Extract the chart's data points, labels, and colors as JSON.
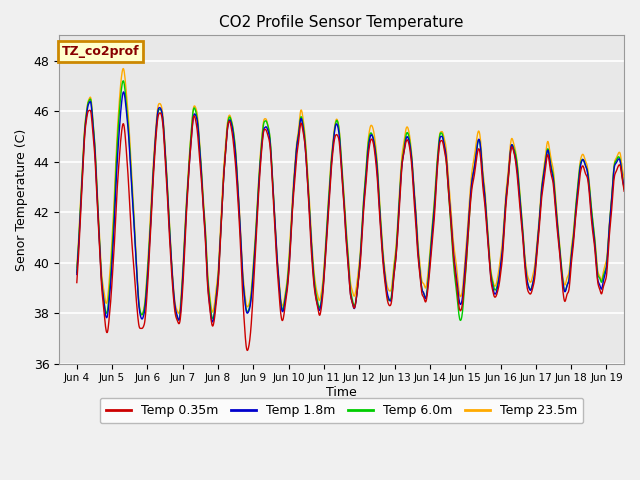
{
  "title": "CO2 Profile Sensor Temperature",
  "xlabel": "Time",
  "ylabel": "Senor Temperature (C)",
  "ylim": [
    36,
    49
  ],
  "xlim_days": [
    3.5,
    19.5
  ],
  "background_color": "#f0f0f0",
  "plot_bg_color": "#e8e8e8",
  "grid_color": "white",
  "colors": {
    "temp035": "#cc0000",
    "temp18": "#0000cc",
    "temp60": "#00cc00",
    "temp235": "#ffaa00"
  },
  "legend_labels": [
    "Temp 0.35m",
    "Temp 1.8m",
    "Temp 6.0m",
    "Temp 23.5m"
  ],
  "legend_box_color": "#ffffcc",
  "legend_box_edge": "#cc8800",
  "legend_text_color": "#880000",
  "legend_text": "TZ_co2prof",
  "yticks": [
    36,
    38,
    40,
    42,
    44,
    46,
    48
  ],
  "xtick_labels": [
    "Jun 4",
    "Jun 5",
    "Jun 6",
    "Jun 7",
    "Jun 8",
    "Jun 9",
    "Jun 10",
    "Jun 11",
    "Jun 12",
    "Jun 13",
    "Jun 14",
    "Jun 15",
    "Jun 16",
    "Jun 17",
    "Jun 18",
    "Jun 19"
  ],
  "xtick_days": [
    4,
    5,
    6,
    7,
    8,
    9,
    10,
    11,
    12,
    13,
    14,
    15,
    16,
    17,
    18,
    19
  ]
}
